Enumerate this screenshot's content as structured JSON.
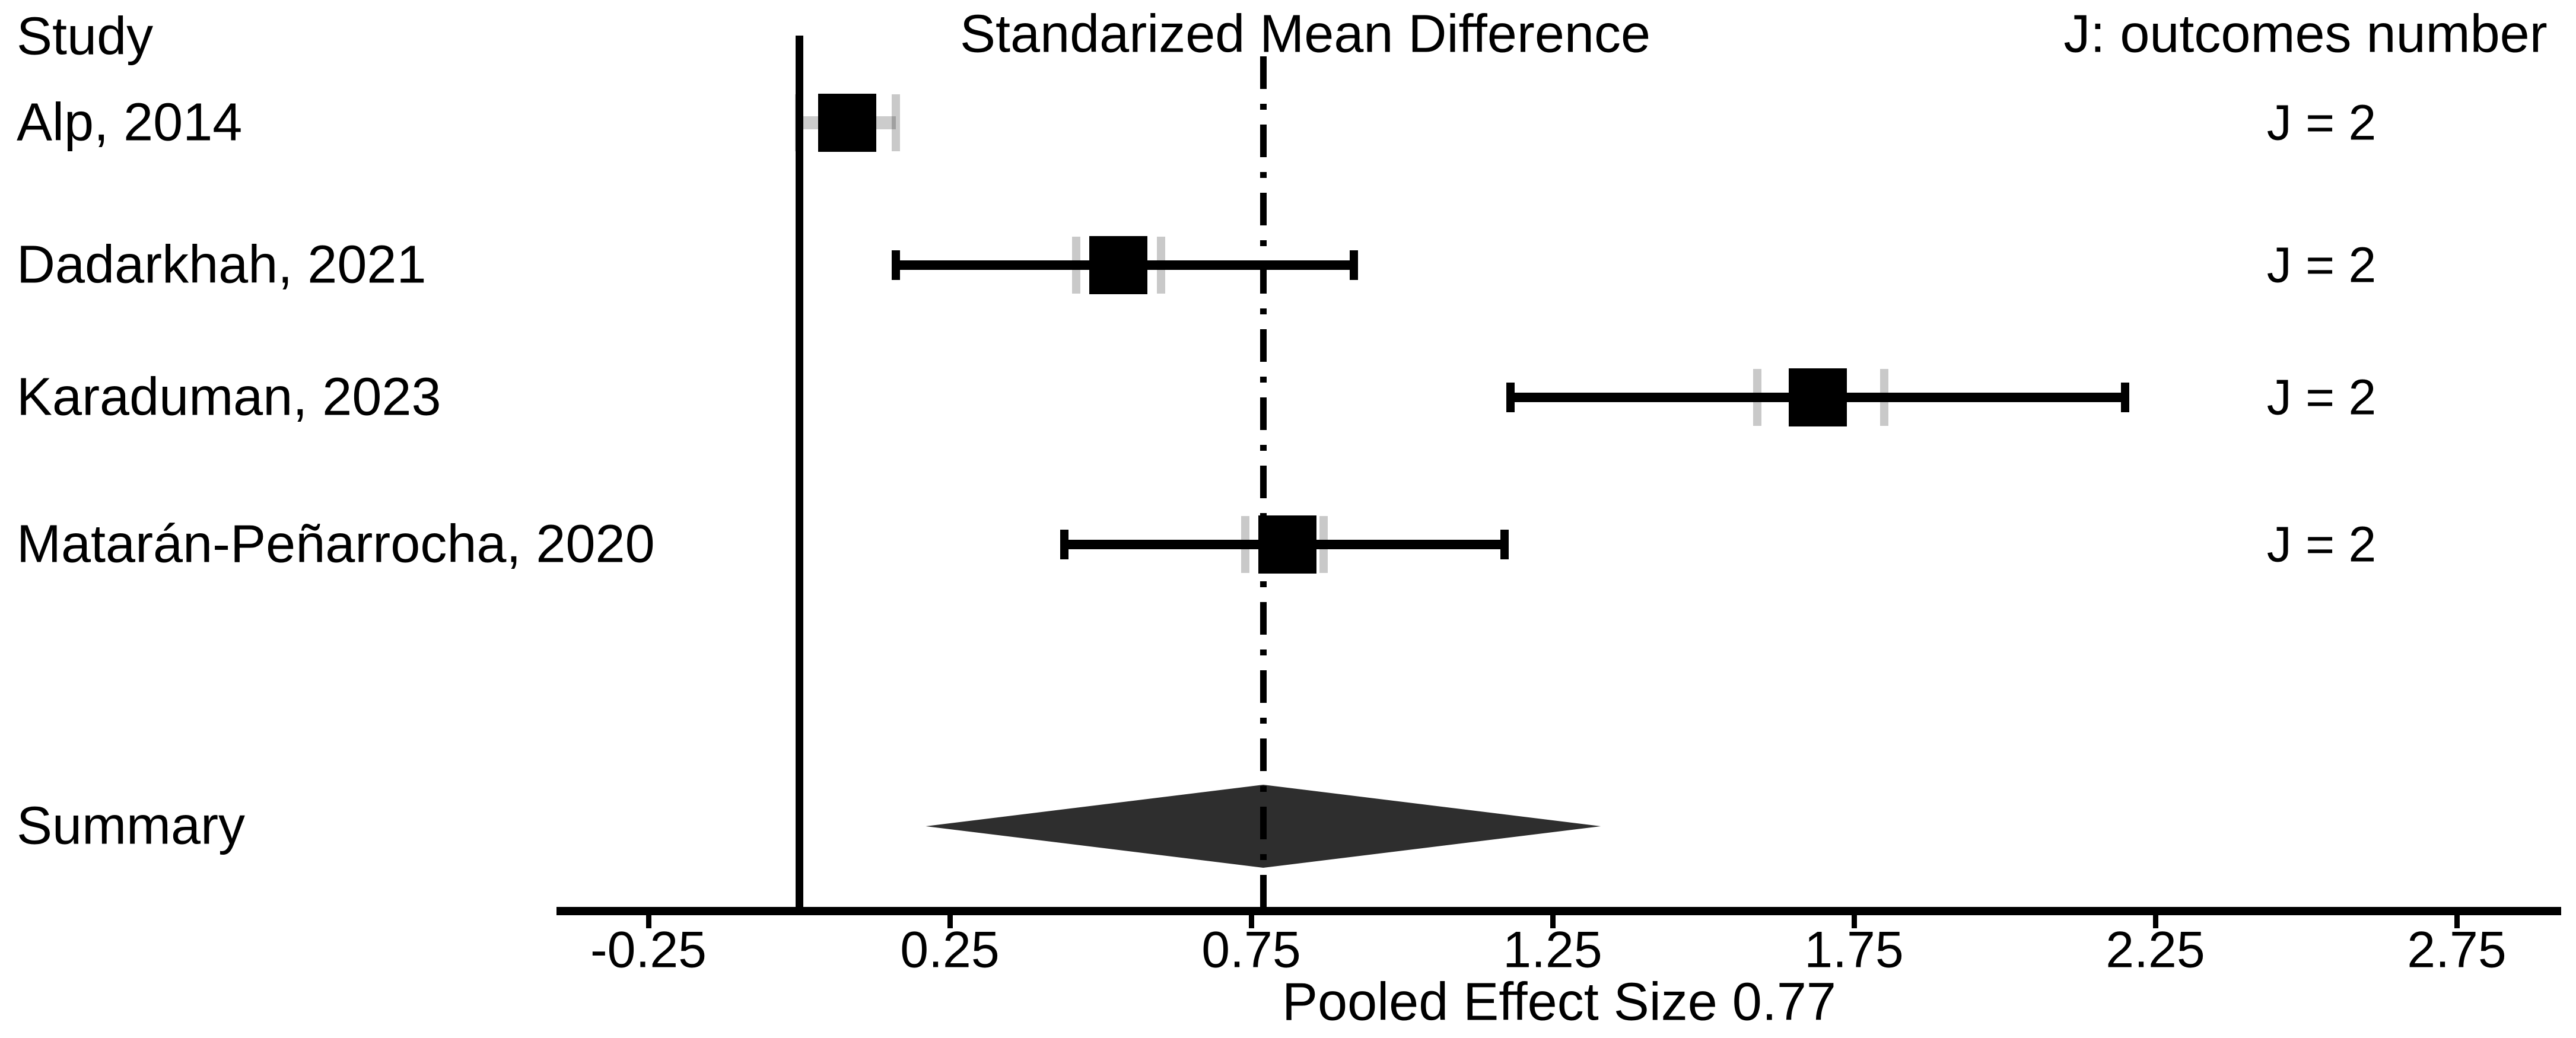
{
  "headers": {
    "study": "Study",
    "effect": "Standarized Mean Difference",
    "outcomes": "J: outcomes number"
  },
  "colors": {
    "marker": "#000000",
    "ci_black": "#000000",
    "outcome_gray": "#c9c9c9",
    "diamond": "#2e2e2e",
    "background": "#ffffff"
  },
  "chart_data": {
    "type": "forest",
    "title": "Standarized Mean Difference",
    "xlabel": "Pooled Effect Size 0.77",
    "pooled_effect": 0.77,
    "x_ticks": [
      -0.25,
      0.25,
      0.75,
      1.25,
      1.75,
      2.25,
      2.75
    ],
    "xlim": [
      -0.4,
      2.95
    ],
    "reference_lines": {
      "null_line": 0,
      "pooled_line": 0.77
    },
    "studies": [
      {
        "label": "Alp, 2014",
        "outcomes_label": "J = 2",
        "estimate": 0.08,
        "ci_lower": 0.0,
        "ci_upper": 0.16,
        "outcome_marks": [
          0.0,
          0.16
        ],
        "ci_style": "gray"
      },
      {
        "label": "Dadarkhah, 2021",
        "outcomes_label": "J = 2",
        "estimate": 0.53,
        "ci_lower": 0.16,
        "ci_upper": 0.92,
        "outcome_marks": [
          0.46,
          0.6
        ],
        "ci_style": "black"
      },
      {
        "label": "Karaduman, 2023",
        "outcomes_label": "J = 2",
        "estimate": 1.69,
        "ci_lower": 1.18,
        "ci_upper": 2.2,
        "outcome_marks": [
          1.59,
          1.8
        ],
        "ci_style": "black"
      },
      {
        "label": "Matarán-Peñarrocha, 2020",
        "outcomes_label": "J = 2",
        "estimate": 0.81,
        "ci_lower": 0.44,
        "ci_upper": 1.17,
        "outcome_marks": [
          0.74,
          0.87
        ],
        "ci_style": "black"
      }
    ],
    "summary": {
      "label": "Summary",
      "estimate": 0.77,
      "ci_lower": 0.21,
      "ci_upper": 1.33
    }
  }
}
